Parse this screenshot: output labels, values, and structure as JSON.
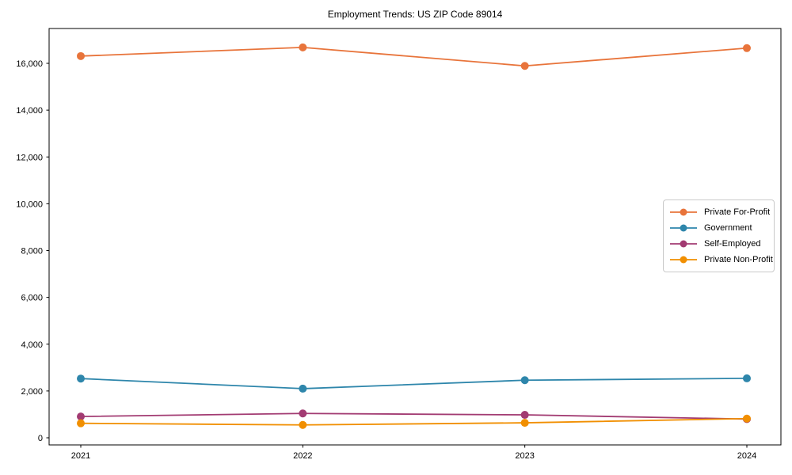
{
  "chart_data": {
    "type": "line",
    "title": "Employment Trends: US ZIP Code 89014",
    "x": [
      "2021",
      "2022",
      "2023",
      "2024"
    ],
    "series": [
      {
        "name": "Private For-Profit",
        "color": "#e8743b",
        "values": [
          16310,
          16680,
          15890,
          16650
        ]
      },
      {
        "name": "Government",
        "color": "#2e86ab",
        "values": [
          2530,
          2100,
          2460,
          2540
        ]
      },
      {
        "name": "Self-Employed",
        "color": "#a23b72",
        "values": [
          910,
          1040,
          980,
          800
        ]
      },
      {
        "name": "Private Non-Profit",
        "color": "#f18f01",
        "values": [
          620,
          550,
          640,
          820
        ]
      }
    ],
    "y_ticks": [
      0,
      2000,
      4000,
      6000,
      8000,
      10000,
      12000,
      14000,
      16000
    ],
    "ylim": [
      0,
      17500
    ],
    "xlabel": "",
    "ylabel": "",
    "grid": false,
    "legend_position": "center-right",
    "marker": "circle",
    "axis_color": "#000000",
    "background_color": "#ffffff"
  }
}
